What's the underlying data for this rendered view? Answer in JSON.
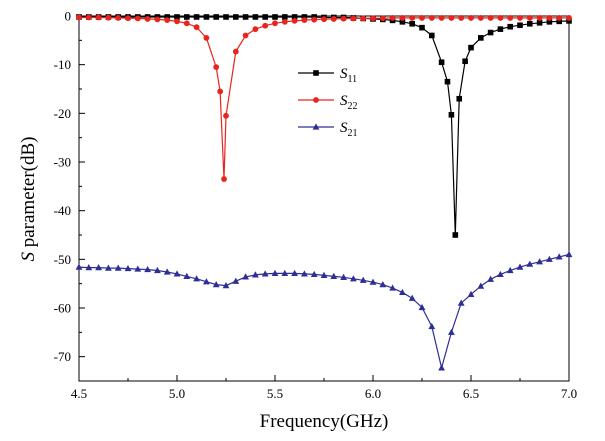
{
  "chart_data": {
    "type": "line",
    "title": "",
    "xlabel": "Frequency(GHz)",
    "ylabel_italic": "S",
    "ylabel_rest": " parameter(dB)",
    "xlim": [
      4.5,
      7.0
    ],
    "ylim": [
      -75,
      0
    ],
    "xticks": [
      "4.5",
      "5.0",
      "5.5",
      "6.0",
      "6.5",
      "7.0"
    ],
    "yticks": [
      "0",
      "-10",
      "-20",
      "-30",
      "-40",
      "-50",
      "-60",
      "-70"
    ],
    "legend_position": "center",
    "colors": {
      "S11": "#000000",
      "S22": "#e8251c",
      "S21": "#2d2e96"
    },
    "series": [
      {
        "key": "S11",
        "name_main": "S",
        "name_sub": "11",
        "marker": "square",
        "x": [
          4.5,
          4.55,
          4.6,
          4.65,
          4.7,
          4.75,
          4.8,
          4.85,
          4.9,
          4.95,
          5.0,
          5.05,
          5.1,
          5.15,
          5.2,
          5.25,
          5.3,
          5.35,
          5.4,
          5.45,
          5.5,
          5.55,
          5.6,
          5.65,
          5.7,
          5.75,
          5.8,
          5.85,
          5.9,
          5.95,
          6.0,
          6.05,
          6.1,
          6.15,
          6.2,
          6.25,
          6.3,
          6.35,
          6.38,
          6.4,
          6.42,
          6.44,
          6.47,
          6.5,
          6.55,
          6.6,
          6.65,
          6.7,
          6.75,
          6.8,
          6.85,
          6.9,
          6.95,
          7.0
        ],
        "values": [
          -0.2,
          -0.2,
          -0.2,
          -0.2,
          -0.2,
          -0.2,
          -0.2,
          -0.2,
          -0.2,
          -0.2,
          -0.2,
          -0.2,
          -0.2,
          -0.2,
          -0.2,
          -0.2,
          -0.2,
          -0.2,
          -0.2,
          -0.2,
          -0.2,
          -0.2,
          -0.2,
          -0.2,
          -0.2,
          -0.3,
          -0.3,
          -0.3,
          -0.4,
          -0.5,
          -0.6,
          -0.7,
          -0.9,
          -1.2,
          -1.6,
          -2.4,
          -4.0,
          -9.5,
          -13.5,
          -20.3,
          -45.0,
          -17.0,
          -9.3,
          -6.5,
          -4.5,
          -3.4,
          -2.7,
          -2.2,
          -1.9,
          -1.6,
          -1.4,
          -1.2,
          -1.1,
          -1.0
        ]
      },
      {
        "key": "S22",
        "name_main": "S",
        "name_sub": "22",
        "marker": "circle",
        "x": [
          4.5,
          4.55,
          4.6,
          4.65,
          4.7,
          4.75,
          4.8,
          4.85,
          4.9,
          4.95,
          5.0,
          5.05,
          5.1,
          5.15,
          5.2,
          5.22,
          5.24,
          5.25,
          5.3,
          5.35,
          5.4,
          5.45,
          5.5,
          5.55,
          5.6,
          5.65,
          5.7,
          5.75,
          5.8,
          5.85,
          5.9,
          5.95,
          6.0,
          6.05,
          6.1,
          6.15,
          6.2,
          6.25,
          6.3,
          6.35,
          6.4,
          6.45,
          6.5,
          6.55,
          6.6,
          6.65,
          6.7,
          6.75,
          6.8,
          6.85,
          6.9,
          6.95,
          7.0
        ],
        "values": [
          -0.3,
          -0.3,
          -0.3,
          -0.35,
          -0.4,
          -0.45,
          -0.5,
          -0.6,
          -0.7,
          -0.85,
          -1.1,
          -1.5,
          -2.3,
          -4.5,
          -10.5,
          -15.5,
          -33.5,
          -20.5,
          -7.3,
          -4.0,
          -2.7,
          -2.0,
          -1.5,
          -1.2,
          -1.0,
          -0.85,
          -0.75,
          -0.65,
          -0.6,
          -0.55,
          -0.5,
          -0.5,
          -0.45,
          -0.45,
          -0.4,
          -0.4,
          -0.4,
          -0.4,
          -0.4,
          -0.4,
          -0.4,
          -0.4,
          -0.4,
          -0.4,
          -0.4,
          -0.4,
          -0.4,
          -0.4,
          -0.4,
          -0.4,
          -0.4,
          -0.4,
          -0.4
        ]
      },
      {
        "key": "S21",
        "name_main": "S",
        "name_sub": "21",
        "marker": "triangle",
        "x": [
          4.5,
          4.55,
          4.6,
          4.65,
          4.7,
          4.75,
          4.8,
          4.85,
          4.9,
          4.95,
          5.0,
          5.05,
          5.1,
          5.15,
          5.2,
          5.25,
          5.3,
          5.35,
          5.4,
          5.45,
          5.5,
          5.55,
          5.6,
          5.65,
          5.7,
          5.75,
          5.8,
          5.85,
          5.9,
          5.95,
          6.0,
          6.05,
          6.1,
          6.15,
          6.2,
          6.25,
          6.3,
          6.35,
          6.4,
          6.45,
          6.5,
          6.55,
          6.6,
          6.65,
          6.7,
          6.75,
          6.8,
          6.85,
          6.9,
          6.95,
          7.0
        ],
        "values": [
          -51.6,
          -51.7,
          -51.7,
          -51.8,
          -51.8,
          -51.9,
          -52.0,
          -52.1,
          -52.3,
          -52.6,
          -53.0,
          -53.5,
          -54.0,
          -54.6,
          -55.2,
          -55.4,
          -54.5,
          -53.6,
          -53.2,
          -53.0,
          -52.9,
          -52.9,
          -52.9,
          -53.0,
          -53.1,
          -53.3,
          -53.5,
          -53.7,
          -54.0,
          -54.3,
          -54.7,
          -55.2,
          -55.9,
          -56.8,
          -58.0,
          -59.9,
          -63.8,
          -72.3,
          -65.0,
          -59.0,
          -57.2,
          -55.5,
          -54.1,
          -53.1,
          -52.3,
          -51.6,
          -51.0,
          -50.5,
          -50.0,
          -49.5,
          -49.0
        ]
      }
    ]
  }
}
